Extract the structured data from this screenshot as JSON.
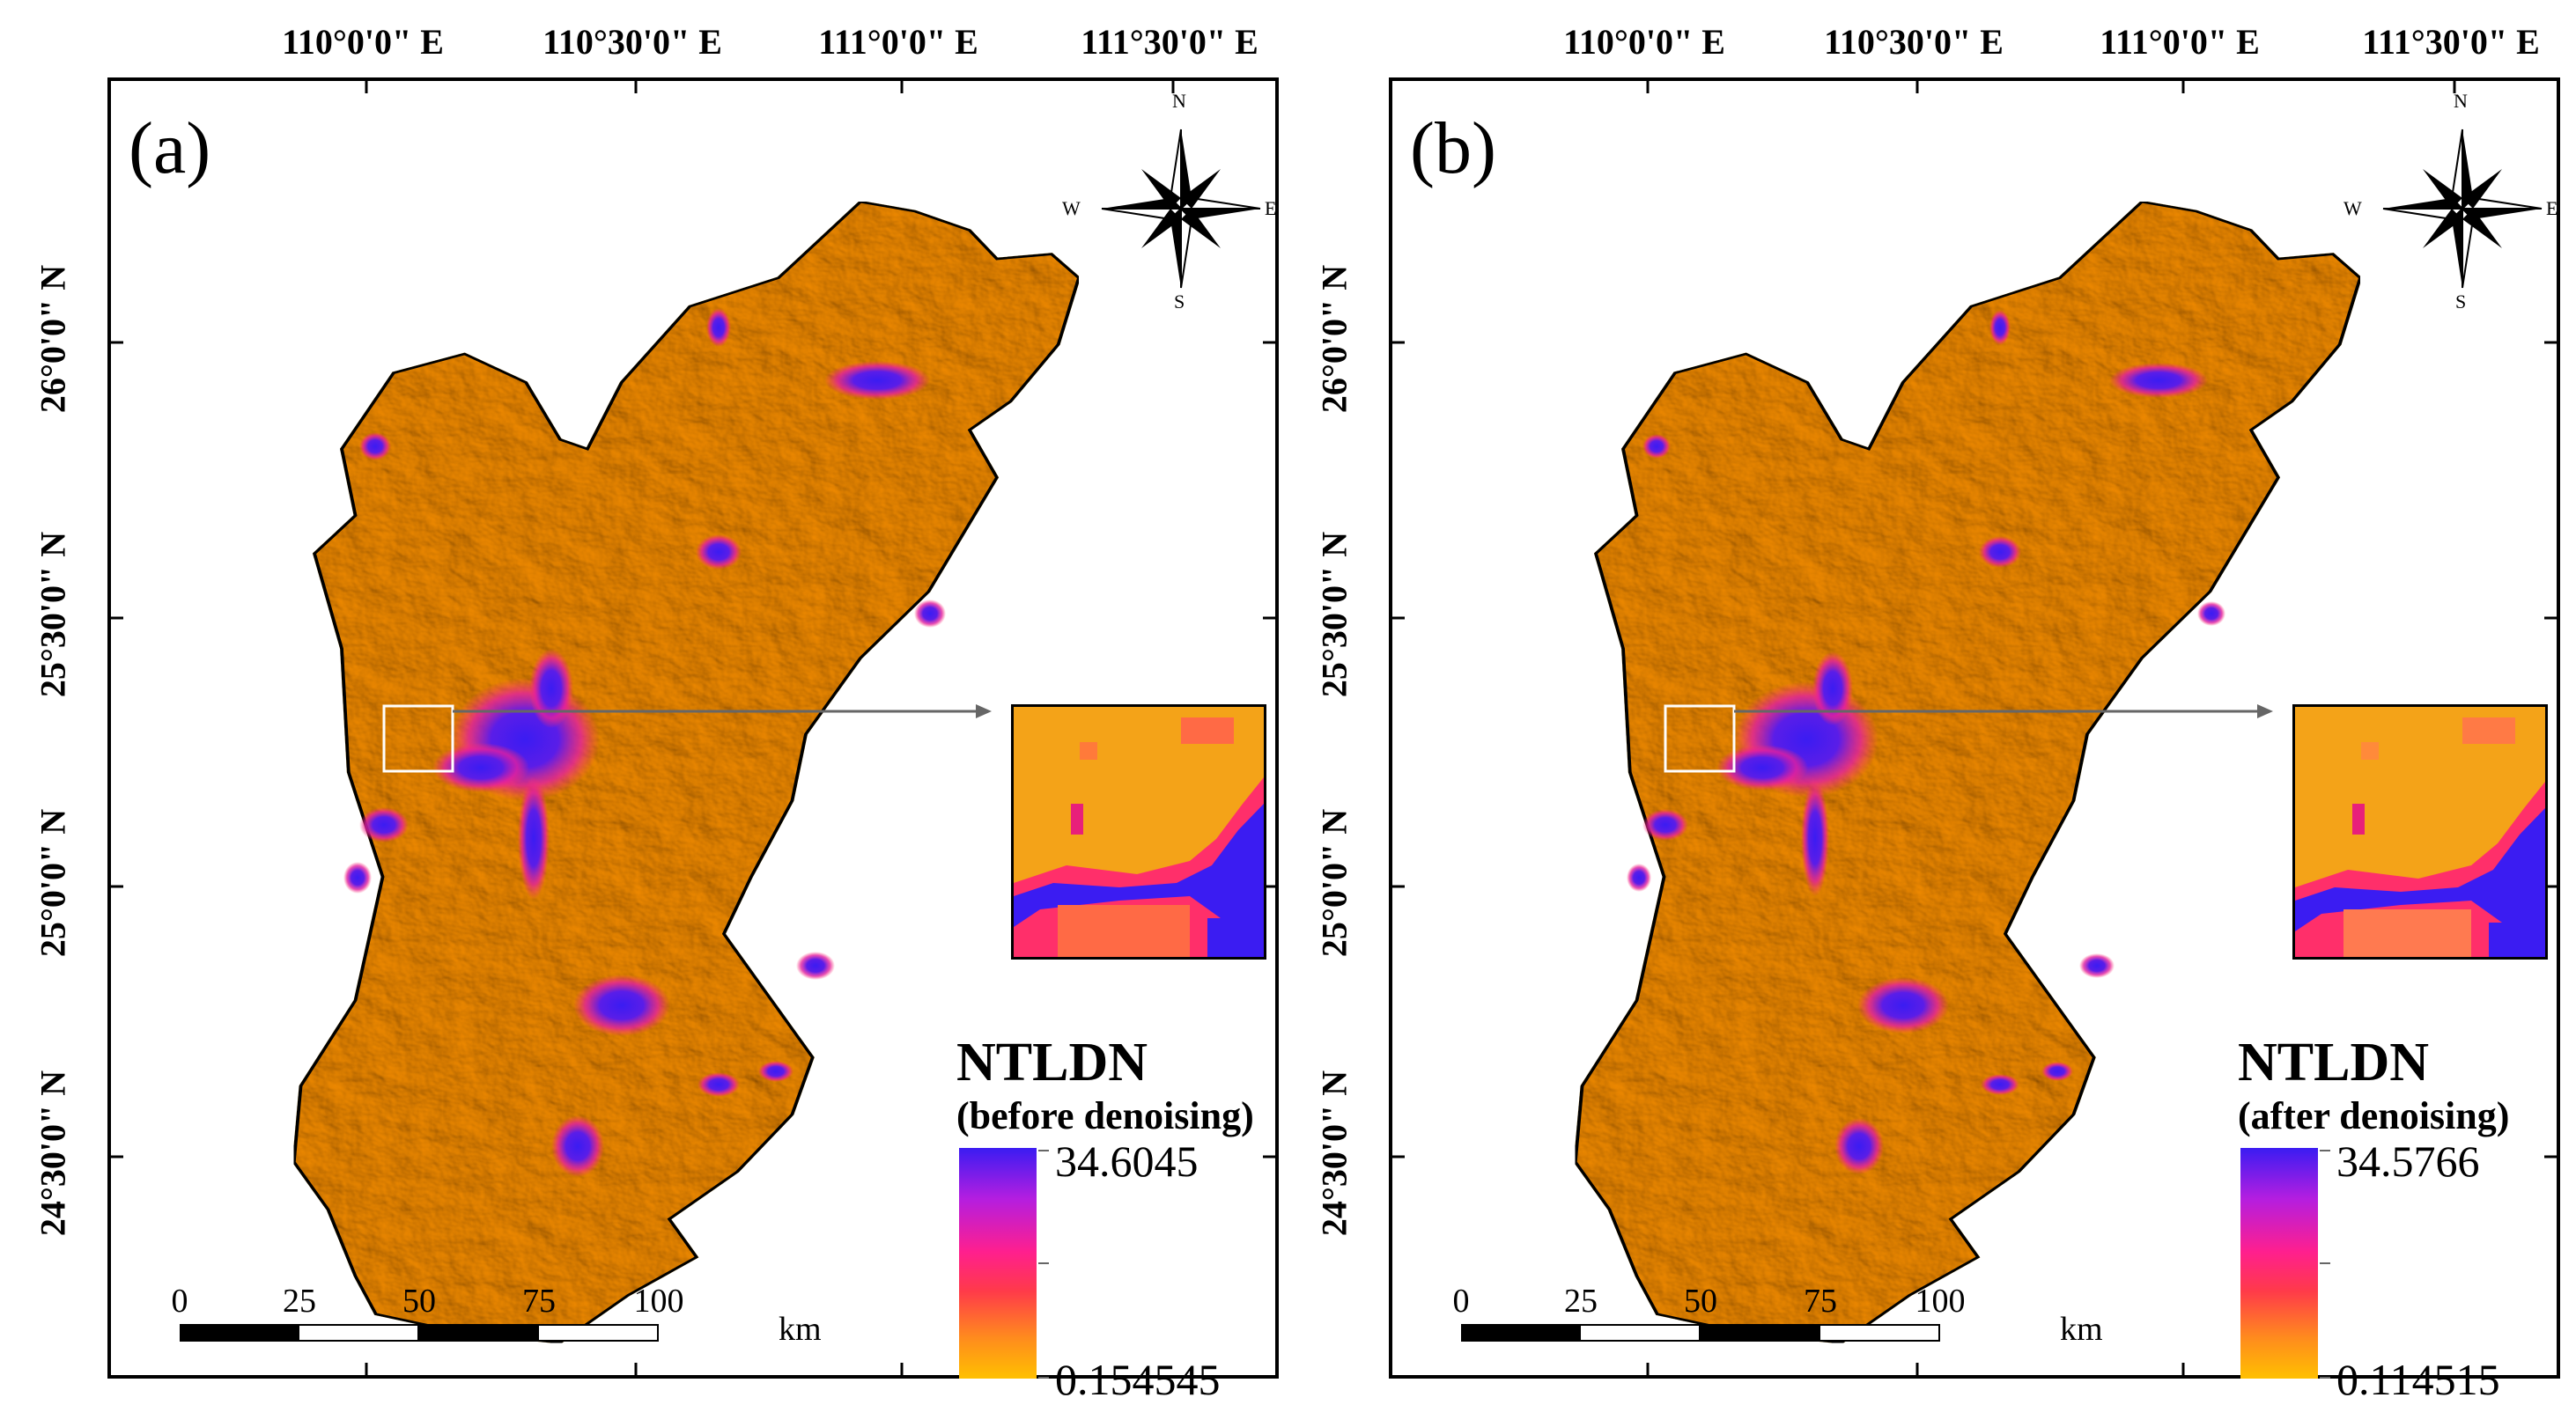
{
  "figure": {
    "longitude_labels": [
      "110°0'0\" E",
      "110°30'0\" E",
      "111°0'0\" E",
      "111°30'0\" E"
    ],
    "latitude_labels": [
      "26°0'0\" N",
      "25°30'0\" N",
      "25°0'0\" N",
      "24°30'0\" N"
    ],
    "north_arrow": {
      "n": "N",
      "s": "S",
      "e": "E",
      "w": "W",
      "icon": "compass-rose-icon"
    },
    "scale_bar": {
      "ticks": [
        "0",
        "25",
        "50",
        "75",
        "100"
      ],
      "unit": "km"
    },
    "colors": {
      "land": "#f0a81a",
      "urban": "#3b1cf2",
      "ramp_high": "#3b1cf2",
      "ramp_mid": "#ff1f8e",
      "ramp_low": "#ffc000",
      "leader_line": "#666666"
    }
  },
  "panels": [
    {
      "label": "(a)",
      "legend_title": "NTLDN",
      "legend_subtitle": "(before denoising)",
      "legend_max": "34.6045",
      "legend_min": "0.154545"
    },
    {
      "label": "(b)",
      "legend_title": "NTLDN",
      "legend_subtitle": "(after denoising)",
      "legend_max": "34.5766",
      "legend_min": "0.114515"
    }
  ]
}
